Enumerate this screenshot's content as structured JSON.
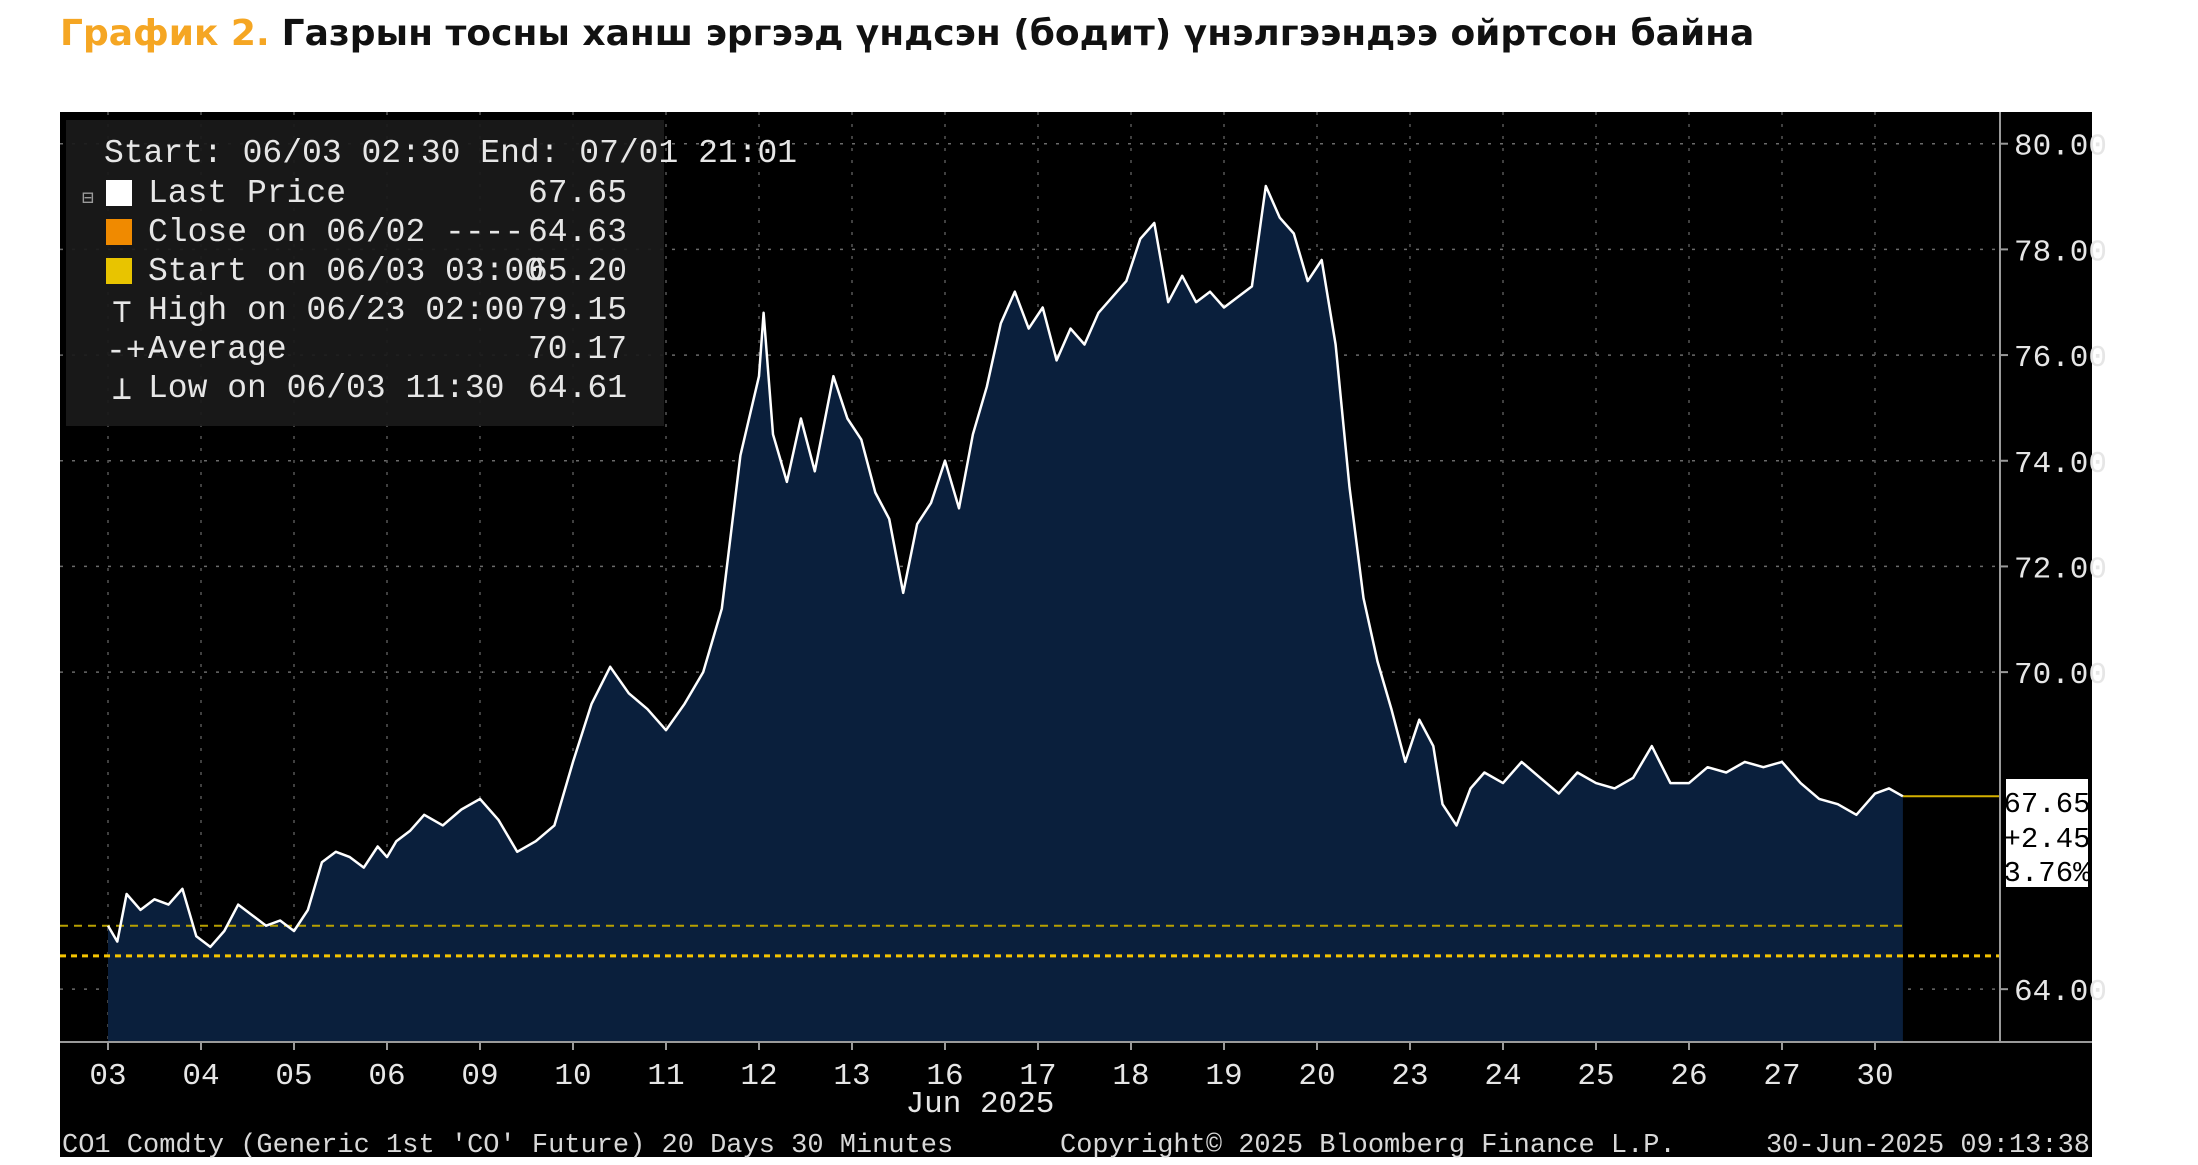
{
  "caption": {
    "number": "График 2.",
    "text": "Газрын тосны ханш эргээд үндсэн (бодит) үнэлгээндээ ойртсон байна"
  },
  "chart_data": {
    "type": "area",
    "ylim": [
      63,
      80.6
    ],
    "yticks": [
      "80.00",
      "78.00",
      "76.00",
      "74.00",
      "72.00",
      "70.00",
      "64.00"
    ],
    "ytick_values": [
      80,
      78,
      76,
      74,
      72,
      70,
      64
    ],
    "xticks": [
      "03",
      "04",
      "05",
      "06",
      "09",
      "10",
      "11",
      "12",
      "13",
      "16",
      "17",
      "18",
      "19",
      "20",
      "23",
      "24",
      "25",
      "26",
      "27",
      "30"
    ],
    "xlabel": "Jun 2025",
    "grid": true,
    "legend_placement": "top-left",
    "colors": {
      "area": "#0a1f3c",
      "line": "#ffffff",
      "close_line": "#f5c400",
      "start_line": "#b8a000",
      "last_price_line": "#d4b000",
      "background": "#000000"
    },
    "legend": {
      "header": "Start: 06/03 02:30 End: 07/01 21:01",
      "items": [
        {
          "label": "Last Price",
          "value": "67.65",
          "marker": "white-square"
        },
        {
          "label": "Close on 06/02 ----",
          "value": "64.63",
          "marker": "orange-square"
        },
        {
          "label": "Start on 06/03 03:00",
          "value": "65.20",
          "marker": "yellow-square"
        },
        {
          "label": "High on 06/23 02:00",
          "value": "79.15",
          "marker": "high-marker"
        },
        {
          "label": "Average",
          "value": "70.17",
          "marker": "average-marker"
        },
        {
          "label": "Low on 06/03 11:30",
          "value": "64.61",
          "marker": "low-marker"
        }
      ]
    },
    "last_price_box": {
      "price": "67.65",
      "change": "+2.45",
      "pct": "3.76%"
    },
    "reference_lines": {
      "close": 64.63,
      "start": 65.2,
      "last": 67.65
    },
    "series": [
      {
        "x": [
          0.0,
          0.1,
          0.2,
          0.35,
          0.5,
          0.65,
          0.8,
          0.95,
          1.1,
          1.25,
          1.4,
          1.55,
          1.7,
          1.85,
          2.0,
          2.15,
          2.3,
          2.45,
          2.6,
          2.75,
          2.9,
          3.0,
          3.1,
          3.25,
          3.4,
          3.6,
          3.8,
          4.0,
          4.2,
          4.4,
          4.6,
          4.8,
          5.0,
          5.2,
          5.4,
          5.6,
          5.8,
          6.0,
          6.2,
          6.4,
          6.6,
          6.8,
          7.0,
          7.05,
          7.15,
          7.3,
          7.45,
          7.6,
          7.8,
          7.95,
          8.1,
          8.25,
          8.4,
          8.55,
          8.7,
          8.85,
          9.0,
          9.15,
          9.3,
          9.45,
          9.6,
          9.75,
          9.9,
          10.05,
          10.2,
          10.35,
          10.5,
          10.65,
          10.8,
          10.95,
          11.1,
          11.25,
          11.4,
          11.55,
          11.7,
          11.85,
          12.0,
          12.15,
          12.3,
          12.45,
          12.6,
          12.75,
          12.9,
          13.05,
          13.2,
          13.35,
          13.5,
          13.65,
          13.8,
          13.95,
          14.1,
          14.25,
          14.35,
          14.5,
          14.65,
          14.8,
          15.0,
          15.2,
          15.4,
          15.6,
          15.8,
          16.0,
          16.2,
          16.4,
          16.6,
          16.8,
          17.0,
          17.2,
          17.4,
          17.6,
          17.8,
          18.0,
          18.2,
          18.4,
          18.6,
          18.8,
          19.0,
          19.15,
          19.3
        ],
        "y": [
          65.2,
          64.9,
          65.8,
          65.5,
          65.7,
          65.6,
          65.9,
          65.0,
          64.8,
          65.1,
          65.6,
          65.4,
          65.2,
          65.3,
          65.1,
          65.5,
          66.4,
          66.6,
          66.5,
          66.3,
          66.7,
          66.5,
          66.8,
          67.0,
          67.3,
          67.1,
          67.4,
          67.6,
          67.2,
          66.6,
          66.8,
          67.1,
          68.3,
          69.4,
          70.1,
          69.6,
          69.3,
          68.9,
          69.4,
          70.0,
          71.2,
          74.1,
          75.6,
          76.8,
          74.5,
          73.6,
          74.8,
          73.8,
          75.6,
          74.8,
          74.4,
          73.4,
          72.9,
          71.5,
          72.8,
          73.2,
          74.0,
          73.1,
          74.5,
          75.4,
          76.6,
          77.2,
          76.5,
          76.9,
          75.9,
          76.5,
          76.2,
          76.8,
          77.1,
          77.4,
          78.2,
          78.5,
          77.0,
          77.5,
          77.0,
          77.2,
          76.9,
          77.1,
          77.3,
          79.2,
          78.6,
          78.3,
          77.4,
          77.8,
          76.2,
          73.5,
          71.4,
          70.2,
          69.3,
          68.3,
          69.1,
          68.6,
          67.5,
          67.1,
          67.8,
          68.1,
          67.9,
          68.3,
          68.0,
          67.7,
          68.1,
          67.9,
          67.8,
          68.0,
          68.6,
          67.9,
          67.9,
          68.2,
          68.1,
          68.3,
          68.2,
          68.3,
          67.9,
          67.6,
          67.5,
          67.3,
          67.7,
          67.8,
          67.65
        ]
      }
    ]
  },
  "footer": {
    "left": "CO1 Comdty (Generic 1st 'CO' Future) 20 Days 30 Minutes",
    "center": "Copyright© 2025 Bloomberg Finance L.P.",
    "right": "30-Jun-2025 09:13:38"
  }
}
